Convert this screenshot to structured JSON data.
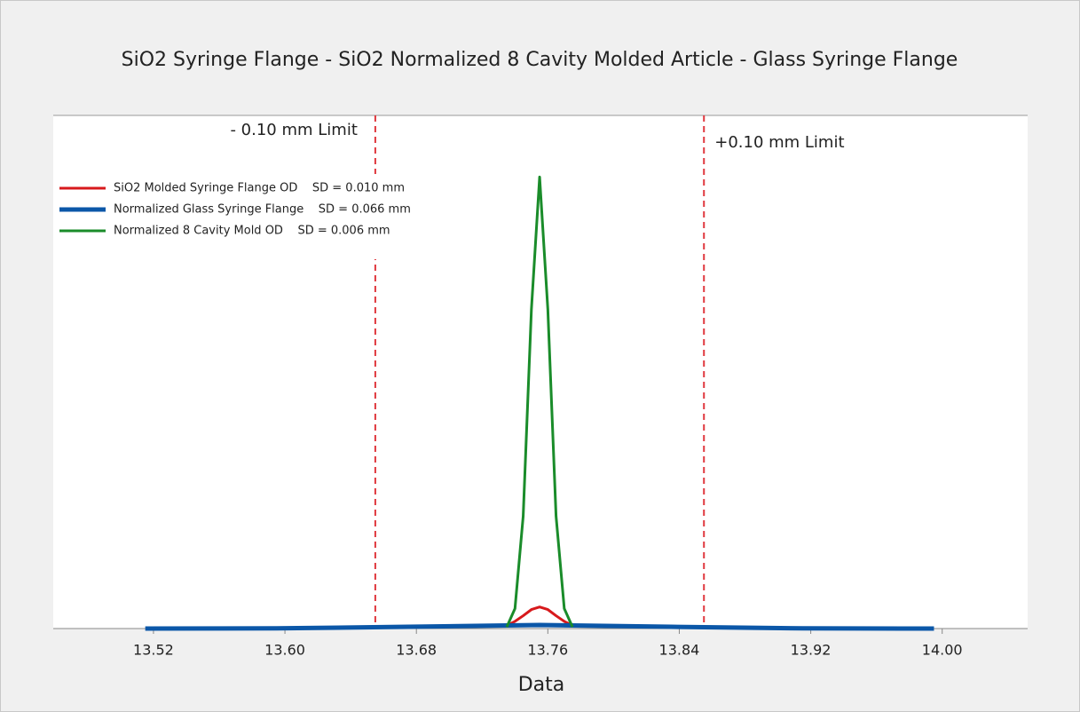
{
  "chart_data": {
    "type": "line",
    "title": "SiO2 Syringe Flange - SiO2 Normalized 8 Cavity Molded Article - Glass Syringe Flange",
    "xlabel": "Data",
    "xlim": [
      13.459,
      14.052
    ],
    "ylim": [
      0,
      100
    ],
    "xticks": [
      13.52,
      {
        "value": 13.6,
        "label": "13.60"
      },
      13.68,
      13.76,
      13.84,
      13.92,
      {
        "value": 14,
        "label": "14.00"
      }
    ],
    "limits": [
      {
        "value": 13.655,
        "label": "- 0.10 mm Limit"
      },
      {
        "value": 13.855,
        "label": "+0.10 mm Limit"
      }
    ],
    "legend": "upper left",
    "series": [
      {
        "name": "SiO2 Molded Syringe Flange OD    SD = 0.010 mm",
        "color": "#d7191c",
        "width": 3,
        "x": [
          13.735,
          13.74,
          13.745,
          13.75,
          13.755,
          13.76,
          13.765,
          13.77,
          13.775
        ],
        "values": [
          0.6,
          1.4,
          2.5,
          3.7,
          4.2,
          3.7,
          2.5,
          1.4,
          0.6
        ]
      },
      {
        "name": "Normalized Glass Syringe Flange    SD = 0.066 mm",
        "color": "#0b57a8",
        "width": 5,
        "x": [
          13.515,
          13.595,
          13.675,
          13.755,
          13.835,
          13.915,
          13.995
        ],
        "values": [
          0,
          0.04,
          0.34,
          0.7,
          0.34,
          0.04,
          0
        ]
      },
      {
        "name": "Normalized 8 Cavity Mold OD    SD = 0.006 mm",
        "color": "#1a8c2a",
        "width": 3,
        "x": [
          13.735,
          13.74,
          13.745,
          13.75,
          13.755,
          13.76,
          13.765,
          13.77,
          13.775
        ],
        "values": [
          0.3,
          3.9,
          21.9,
          62.2,
          88,
          62.2,
          21.9,
          3.9,
          0.3
        ]
      }
    ]
  }
}
